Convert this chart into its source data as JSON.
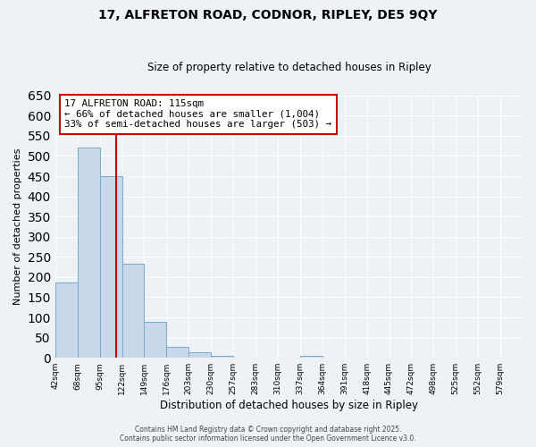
{
  "title": "17, ALFRETON ROAD, CODNOR, RIPLEY, DE5 9QY",
  "subtitle": "Size of property relative to detached houses in Ripley",
  "xlabel": "Distribution of detached houses by size in Ripley",
  "ylabel": "Number of detached properties",
  "bar_values": [
    186,
    520,
    450,
    232,
    88,
    27,
    13,
    4,
    1,
    0,
    0,
    4,
    0,
    0,
    0,
    0,
    0,
    1,
    0,
    0,
    0
  ],
  "bar_labels": [
    "42sqm",
    "68sqm",
    "95sqm",
    "122sqm",
    "149sqm",
    "176sqm",
    "203sqm",
    "230sqm",
    "257sqm",
    "283sqm",
    "310sqm",
    "337sqm",
    "364sqm",
    "391sqm",
    "418sqm",
    "445sqm",
    "472sqm",
    "498sqm",
    "525sqm",
    "552sqm",
    "579sqm"
  ],
  "bar_color": "#c8d8ea",
  "bar_edge_color": "#7aaac8",
  "ylim": [
    0,
    650
  ],
  "yticks": [
    0,
    50,
    100,
    150,
    200,
    250,
    300,
    350,
    400,
    450,
    500,
    550,
    600,
    650
  ],
  "vline_color": "#cc0000",
  "annotation_title": "17 ALFRETON ROAD: 115sqm",
  "annotation_line2": "← 66% of detached houses are smaller (1,004)",
  "annotation_line3": "33% of semi-detached houses are larger (503) →",
  "annotation_box_color": "#cc0000",
  "footer_line1": "Contains HM Land Registry data © Crown copyright and database right 2025.",
  "footer_line2": "Contains public sector information licensed under the Open Government Licence v3.0.",
  "background_color": "#eef2f7",
  "grid_color": "#ffffff"
}
